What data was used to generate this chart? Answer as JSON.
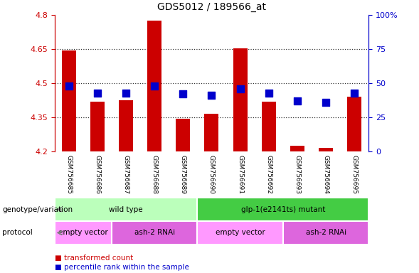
{
  "title": "GDS5012 / 189566_at",
  "samples": [
    "GSM756685",
    "GSM756686",
    "GSM756687",
    "GSM756688",
    "GSM756689",
    "GSM756690",
    "GSM756691",
    "GSM756692",
    "GSM756693",
    "GSM756694",
    "GSM756695"
  ],
  "red_values": [
    4.645,
    4.42,
    4.425,
    4.775,
    4.345,
    4.365,
    4.655,
    4.42,
    4.225,
    4.215,
    4.44
  ],
  "blue_values_pct": [
    48,
    43,
    43,
    48,
    42,
    41,
    46,
    43,
    37,
    36,
    43
  ],
  "y_min": 4.2,
  "y_max": 4.8,
  "y_ticks_left": [
    4.2,
    4.35,
    4.5,
    4.65,
    4.8
  ],
  "y_ticks_right": [
    0,
    25,
    50,
    75,
    100
  ],
  "bar_color": "#cc0000",
  "dot_color": "#0000cc",
  "bar_width": 0.5,
  "dot_size": 55,
  "grid_color": "black",
  "grid_alpha": 0.8,
  "groups": [
    {
      "label": "wild type",
      "start": 0,
      "end": 5,
      "color": "#bbffbb"
    },
    {
      "label": "glp-1(e2141ts) mutant",
      "start": 5,
      "end": 11,
      "color": "#44cc44"
    }
  ],
  "protocols": [
    {
      "label": "empty vector",
      "start": 0,
      "end": 2,
      "color": "#ff99ff"
    },
    {
      "label": "ash-2 RNAi",
      "start": 2,
      "end": 5,
      "color": "#dd66dd"
    },
    {
      "label": "empty vector",
      "start": 5,
      "end": 8,
      "color": "#ff99ff"
    },
    {
      "label": "ash-2 RNAi",
      "start": 8,
      "end": 11,
      "color": "#dd66dd"
    }
  ],
  "left_axis_color": "#cc0000",
  "right_axis_color": "#0000cc",
  "sample_bg_color": "#cccccc",
  "legend_red_label": "transformed count",
  "legend_blue_label": "percentile rank within the sample",
  "geno_label": "genotype/variation",
  "proto_label": "protocol"
}
